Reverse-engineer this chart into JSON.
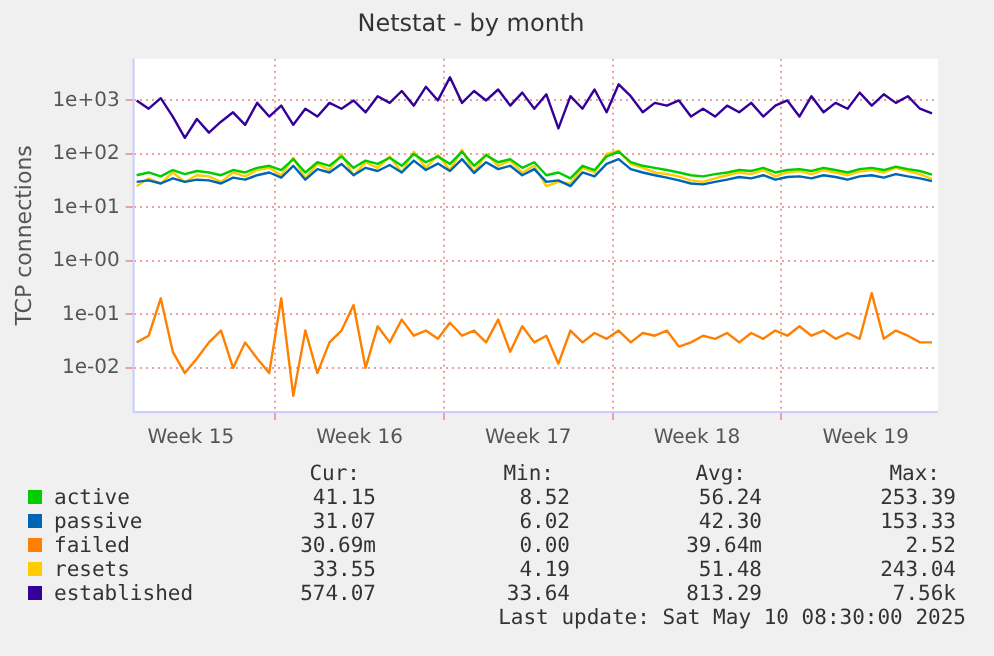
{
  "chart_data": {
    "type": "line",
    "title": "Netstat - by month",
    "ylabel": "TCP connections",
    "log": "y",
    "grid": true,
    "legend": "bottom",
    "marker": "none",
    "line_style": "solid",
    "ylim": [
      0.0015,
      6000
    ],
    "yticks": [
      {
        "value": 0.01,
        "label": "1e-02"
      },
      {
        "value": 0.1,
        "label": "1e-01"
      },
      {
        "value": 1,
        "label": "1e+00"
      },
      {
        "value": 10,
        "label": "1e+01"
      },
      {
        "value": 100,
        "label": "1e+02"
      },
      {
        "value": 1000,
        "label": "1e+03"
      }
    ],
    "xlim": [
      "2025-04-08T03:00",
      "2025-05-11T12:00"
    ],
    "xticks": [
      {
        "value": "2025-04-10T12:00",
        "label": "Week 15"
      },
      {
        "value": "2025-04-14T00:00",
        "label": null
      },
      {
        "value": "2025-04-17T12:00",
        "label": "Week 16"
      },
      {
        "value": "2025-04-21T00:00",
        "label": null
      },
      {
        "value": "2025-04-24T12:00",
        "label": "Week 17"
      },
      {
        "value": "2025-04-28T00:00",
        "label": null
      },
      {
        "value": "2025-05-01T12:00",
        "label": "Week 18"
      },
      {
        "value": "2025-05-05T00:00",
        "label": null
      },
      {
        "value": "2025-05-08T12:00",
        "label": "Week 19"
      }
    ],
    "x": [
      "2025-04-08T06:00",
      "2025-04-08T18:00",
      "2025-04-09T06:00",
      "2025-04-09T18:00",
      "2025-04-10T06:00",
      "2025-04-10T18:00",
      "2025-04-11T06:00",
      "2025-04-11T18:00",
      "2025-04-12T06:00",
      "2025-04-12T18:00",
      "2025-04-13T06:00",
      "2025-04-13T18:00",
      "2025-04-14T06:00",
      "2025-04-14T18:00",
      "2025-04-15T06:00",
      "2025-04-15T18:00",
      "2025-04-16T06:00",
      "2025-04-16T18:00",
      "2025-04-17T06:00",
      "2025-04-17T18:00",
      "2025-04-18T06:00",
      "2025-04-18T18:00",
      "2025-04-19T06:00",
      "2025-04-19T18:00",
      "2025-04-20T06:00",
      "2025-04-20T18:00",
      "2025-04-21T06:00",
      "2025-04-21T18:00",
      "2025-04-22T06:00",
      "2025-04-22T18:00",
      "2025-04-23T06:00",
      "2025-04-23T18:00",
      "2025-04-24T06:00",
      "2025-04-24T18:00",
      "2025-04-25T06:00",
      "2025-04-25T18:00",
      "2025-04-26T06:00",
      "2025-04-26T18:00",
      "2025-04-27T06:00",
      "2025-04-27T18:00",
      "2025-04-28T06:00",
      "2025-04-28T18:00",
      "2025-04-29T06:00",
      "2025-04-29T18:00",
      "2025-04-30T06:00",
      "2025-04-30T18:00",
      "2025-05-01T06:00",
      "2025-05-01T18:00",
      "2025-05-02T06:00",
      "2025-05-02T18:00",
      "2025-05-03T06:00",
      "2025-05-03T18:00",
      "2025-05-04T06:00",
      "2025-05-04T18:00",
      "2025-05-05T06:00",
      "2025-05-05T18:00",
      "2025-05-06T06:00",
      "2025-05-06T18:00",
      "2025-05-07T06:00",
      "2025-05-07T18:00",
      "2025-05-08T06:00",
      "2025-05-08T18:00",
      "2025-05-09T06:00",
      "2025-05-09T18:00",
      "2025-05-10T06:00",
      "2025-05-10T18:00",
      "2025-05-11T06:00"
    ],
    "series": [
      {
        "name": "active",
        "color": "#00cc00",
        "values": [
          40,
          45,
          38,
          50,
          42,
          48,
          45,
          40,
          50,
          45,
          55,
          60,
          50,
          80,
          45,
          70,
          60,
          90,
          55,
          75,
          65,
          85,
          60,
          100,
          70,
          90,
          65,
          110,
          60,
          95,
          70,
          80,
          55,
          70,
          40,
          45,
          35,
          60,
          50,
          90,
          110,
          70,
          60,
          55,
          50,
          45,
          40,
          38,
          42,
          45,
          50,
          48,
          55,
          45,
          50,
          52,
          48,
          55,
          50,
          45,
          52,
          55,
          50,
          58,
          52,
          48,
          41
        ]
      },
      {
        "name": "passive",
        "color": "#0066b3",
        "values": [
          30,
          32,
          28,
          35,
          30,
          33,
          32,
          28,
          36,
          33,
          40,
          45,
          36,
          60,
          33,
          52,
          45,
          65,
          40,
          55,
          48,
          62,
          45,
          75,
          50,
          66,
          48,
          80,
          44,
          70,
          52,
          60,
          40,
          52,
          30,
          32,
          25,
          45,
          38,
          65,
          80,
          52,
          45,
          40,
          36,
          32,
          28,
          27,
          30,
          33,
          37,
          35,
          40,
          33,
          37,
          38,
          35,
          40,
          37,
          33,
          38,
          40,
          36,
          42,
          38,
          35,
          31
        ]
      },
      {
        "name": "failed",
        "color": "#ff8000",
        "values": [
          0.03,
          0.04,
          0.2,
          0.02,
          0.008,
          0.015,
          0.03,
          0.05,
          0.01,
          0.03,
          0.015,
          0.008,
          0.2,
          0.003,
          0.05,
          0.008,
          0.03,
          0.05,
          0.15,
          0.01,
          0.06,
          0.03,
          0.08,
          0.04,
          0.05,
          0.035,
          0.07,
          0.04,
          0.05,
          0.03,
          0.08,
          0.02,
          0.06,
          0.03,
          0.04,
          0.012,
          0.05,
          0.03,
          0.045,
          0.035,
          0.05,
          0.03,
          0.045,
          0.04,
          0.05,
          0.025,
          0.03,
          0.04,
          0.035,
          0.045,
          0.03,
          0.045,
          0.035,
          0.05,
          0.04,
          0.06,
          0.04,
          0.05,
          0.035,
          0.045,
          0.035,
          0.25,
          0.035,
          0.05,
          0.04,
          0.03,
          0.03
        ]
      },
      {
        "name": "resets",
        "color": "#ffcc00",
        "values": [
          25,
          35,
          28,
          45,
          30,
          40,
          38,
          30,
          45,
          38,
          50,
          55,
          40,
          85,
          35,
          65,
          50,
          100,
          40,
          70,
          55,
          90,
          45,
          110,
          55,
          95,
          50,
          120,
          45,
          100,
          60,
          75,
          45,
          60,
          25,
          30,
          28,
          55,
          45,
          100,
          115,
          65,
          55,
          45,
          42,
          38,
          32,
          30,
          35,
          40,
          45,
          42,
          50,
          38,
          45,
          48,
          42,
          50,
          45,
          40,
          47,
          50,
          45,
          55,
          48,
          42,
          34
        ]
      },
      {
        "name": "established",
        "color": "#330099",
        "values": [
          1000,
          700,
          1100,
          500,
          200,
          450,
          250,
          400,
          600,
          350,
          900,
          500,
          800,
          350,
          700,
          500,
          900,
          700,
          1000,
          600,
          1200,
          900,
          1500,
          800,
          1800,
          1000,
          2700,
          900,
          1500,
          1000,
          1600,
          800,
          1400,
          700,
          1300,
          300,
          1200,
          700,
          1600,
          600,
          2000,
          1200,
          600,
          900,
          800,
          1000,
          500,
          700,
          500,
          800,
          600,
          900,
          500,
          800,
          1000,
          500,
          1200,
          600,
          900,
          700,
          1400,
          800,
          1300,
          900,
          1200,
          700,
          574
        ]
      }
    ],
    "annotations": [
      "Cur:",
      "Min:",
      "Avg:",
      "Max:",
      "41.15",
      "8.52",
      "56.24",
      "253.39",
      "31.07",
      "6.02",
      "42.30",
      "153.33",
      "30.69m",
      "0.00",
      "39.64m",
      "2.52",
      "33.55",
      "4.19",
      "51.48",
      "243.04",
      "574.07",
      "33.64",
      "813.29",
      "7.56k",
      "Last update: Sat May 10 08:30:00 2025"
    ]
  }
}
